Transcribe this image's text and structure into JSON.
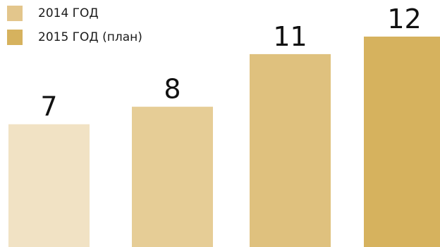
{
  "chart_data": {
    "type": "bar",
    "categories": [
      "",
      "",
      "",
      ""
    ],
    "values": [
      7,
      8,
      11,
      12
    ],
    "value_labels": [
      "7",
      "8",
      "11",
      "12"
    ],
    "bar_colors": [
      "#f1e2c4",
      "#e6cd96",
      "#dfc17e",
      "#d6b25e"
    ],
    "title": "",
    "xlabel": "",
    "ylabel": "",
    "ylim": [
      0,
      12
    ],
    "grid": false,
    "legend_position": "top-left",
    "legend": [
      {
        "label": "2014 ГОД",
        "color": "#e3c68c"
      },
      {
        "label": "2015 ГОД (план)",
        "color": "#d6b25e"
      }
    ]
  }
}
